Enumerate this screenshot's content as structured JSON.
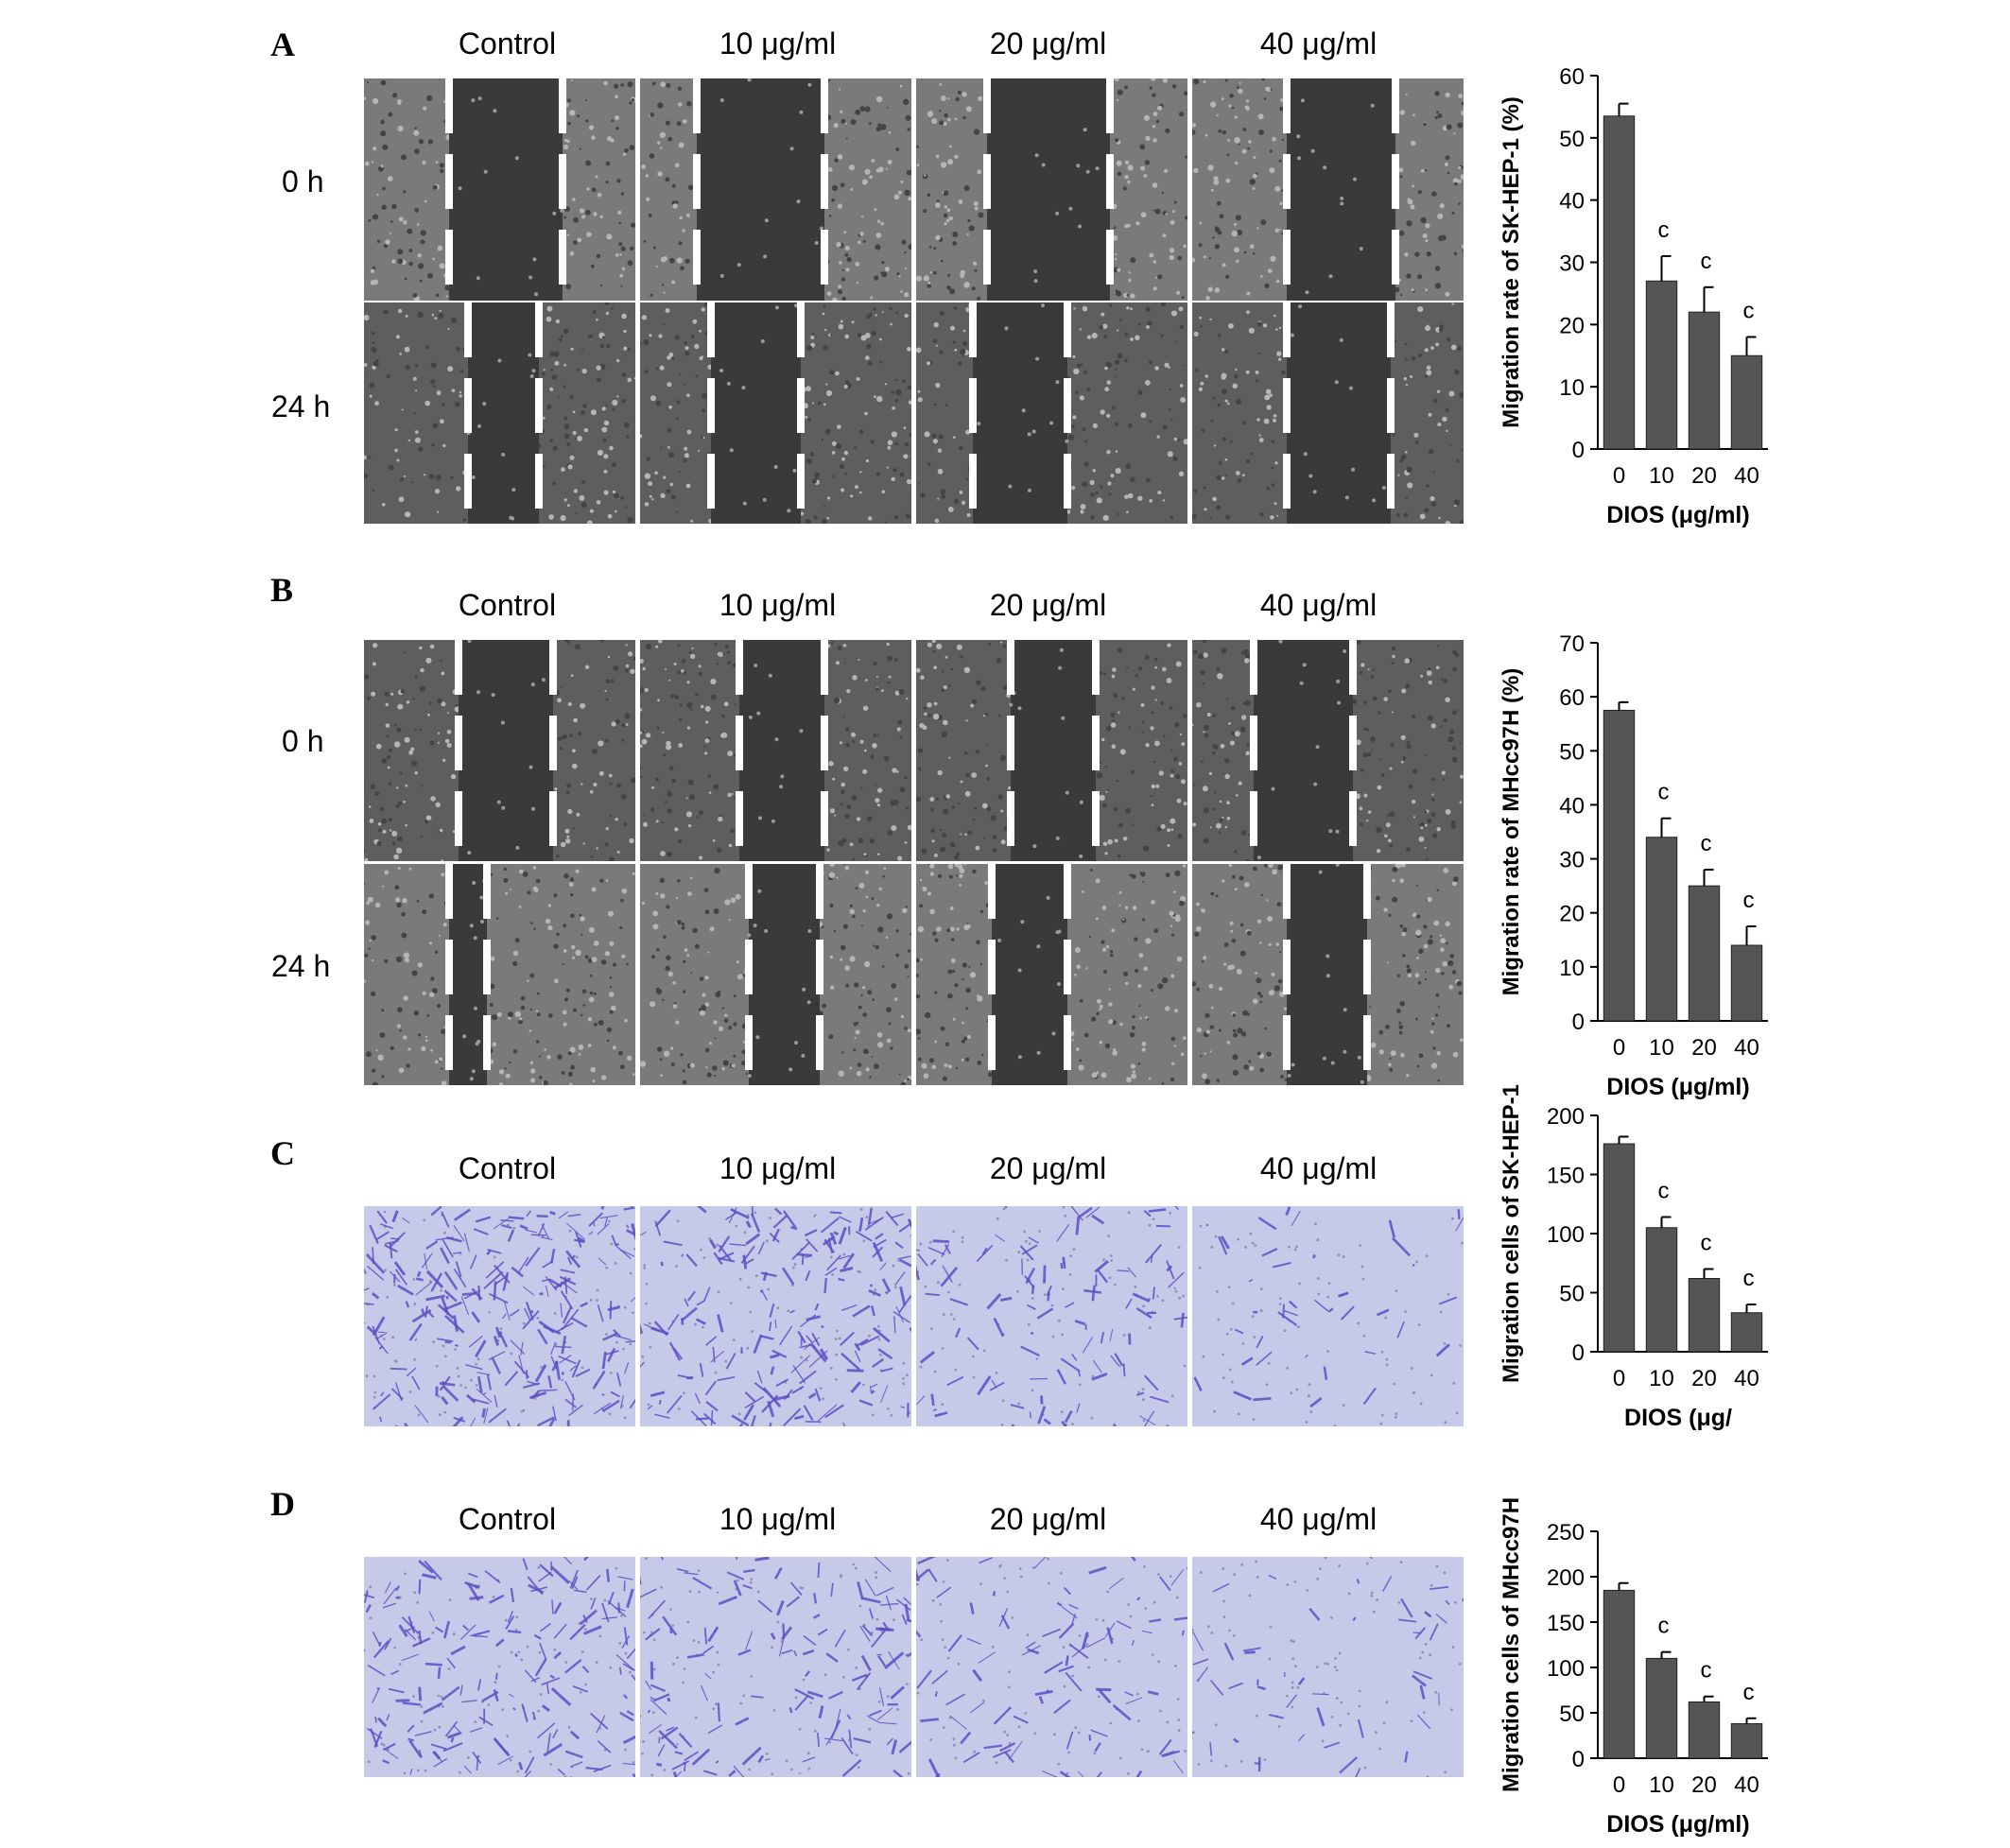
{
  "panels": [
    {
      "letter": "A",
      "columns": [
        "Control",
        "10 μg/ml",
        "20 μg/ml",
        "40 μg/ml"
      ],
      "rows": [
        "0 h",
        "24 h"
      ]
    },
    {
      "letter": "B",
      "columns": [
        "Control",
        "10 μg/ml",
        "20 μg/ml",
        "40 μg/ml"
      ],
      "rows": [
        "0 h",
        "24 h"
      ]
    },
    {
      "letter": "C",
      "columns": [
        "Control",
        "10 μg/ml",
        "20 μg/ml",
        "40 μg/ml"
      ],
      "rows": []
    },
    {
      "letter": "D",
      "columns": [
        "Control",
        "10 μg/ml",
        "20 μg/ml",
        "40 μg/ml"
      ],
      "rows": []
    }
  ],
  "colors": {
    "scratch_image": "#7a7a7a",
    "scratch_gap": "#3a3a3a",
    "scratch_line": "#ffffff",
    "stain_background": "#c7c9e8",
    "stain_cells": "#5a4fc4",
    "bar_fill": "#555555"
  },
  "chart_data": [
    {
      "type": "bar",
      "panel": "A",
      "categories": [
        "0",
        "10",
        "20",
        "40"
      ],
      "values": [
        53.5,
        27,
        22,
        15
      ],
      "errors": [
        2,
        4,
        4,
        3
      ],
      "annotations": [
        "",
        "c",
        "c",
        "c"
      ],
      "ylabel": "Migration rate of SK-HEP-1 (%)",
      "xlabel": "DIOS (μg/ml)",
      "ylim": [
        0,
        60
      ],
      "yticks": [
        0,
        10,
        20,
        30,
        40,
        50,
        60
      ]
    },
    {
      "type": "bar",
      "panel": "B",
      "categories": [
        "0",
        "10",
        "20",
        "40"
      ],
      "values": [
        57.5,
        34,
        25,
        14
      ],
      "errors": [
        1.5,
        3.5,
        3,
        3.5
      ],
      "annotations": [
        "",
        "c",
        "c",
        "c"
      ],
      "ylabel": "Migration rate of MHcc97H (%)",
      "xlabel": "DIOS (μg/ml)",
      "ylim": [
        0,
        70
      ],
      "yticks": [
        0,
        10,
        20,
        30,
        40,
        50,
        60,
        70
      ]
    },
    {
      "type": "bar",
      "panel": "C",
      "categories": [
        "0",
        "10",
        "20",
        "40"
      ],
      "values": [
        176,
        105,
        62,
        33
      ],
      "errors": [
        6,
        9,
        8,
        7
      ],
      "annotations": [
        "",
        "c",
        "c",
        "c"
      ],
      "ylabel": "Migration cells of SK-HEP-1",
      "xlabel": "DIOS (μg/",
      "ylim": [
        0,
        200
      ],
      "yticks": [
        0,
        50,
        100,
        150,
        200
      ]
    },
    {
      "type": "bar",
      "panel": "D",
      "categories": [
        "0",
        "10",
        "20",
        "40"
      ],
      "values": [
        185,
        110,
        62,
        38
      ],
      "errors": [
        8,
        7,
        6,
        6
      ],
      "annotations": [
        "",
        "c",
        "c",
        "c"
      ],
      "ylabel": "Migration cells of MHcc97H",
      "xlabel": "DIOS (μg/ml)",
      "ylim": [
        0,
        250
      ],
      "yticks": [
        0,
        50,
        100,
        150,
        200,
        250
      ]
    }
  ]
}
